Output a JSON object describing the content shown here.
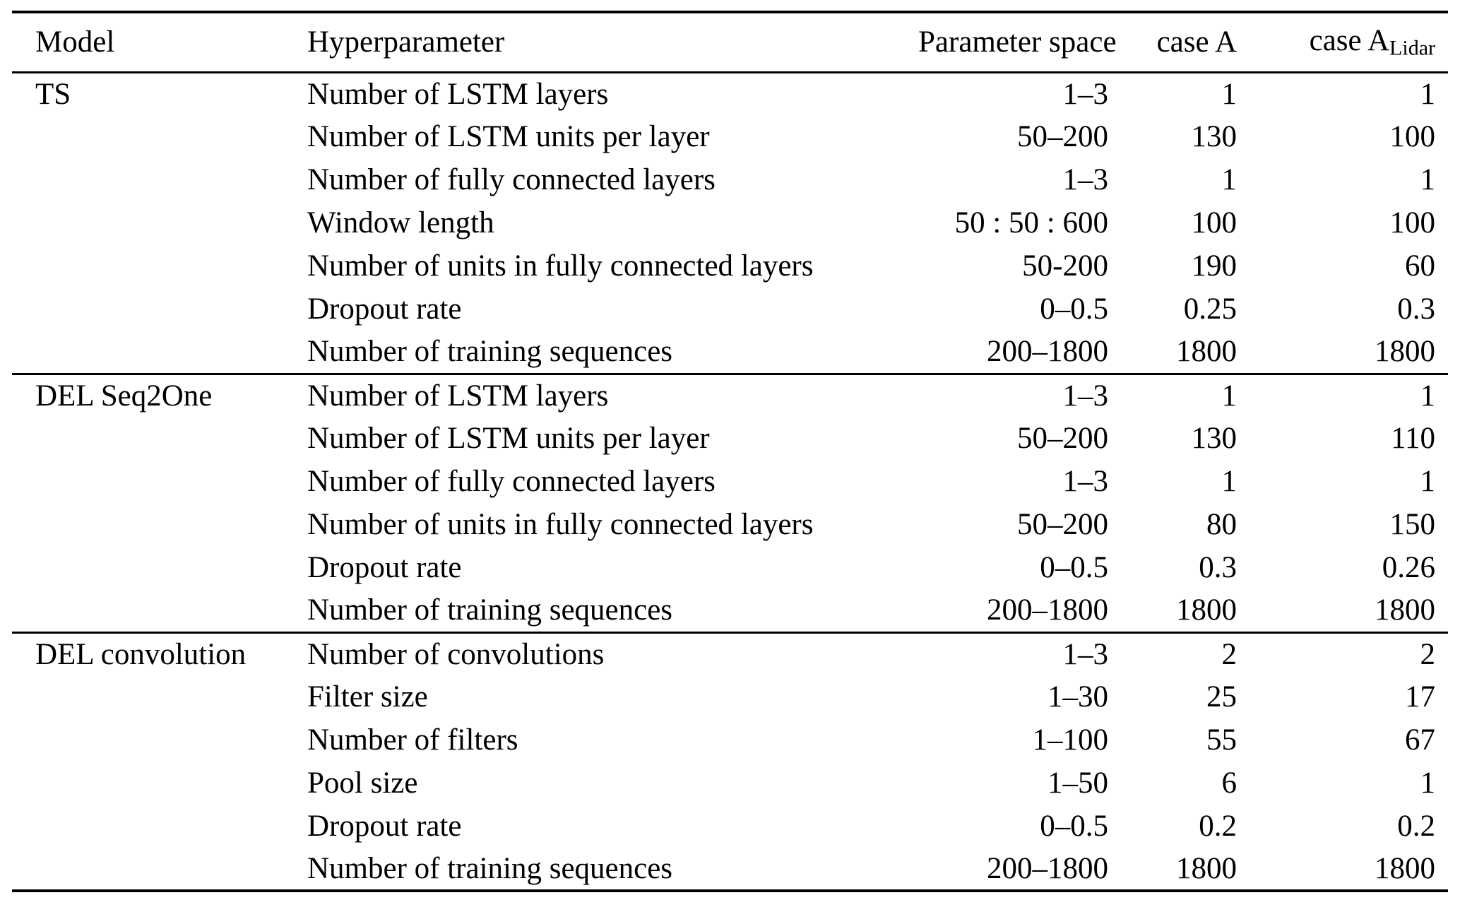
{
  "table": {
    "header": {
      "model": "Model",
      "hyperparameter": "Hyperparameter",
      "parameter_space": "Parameter space",
      "case_a": "case A",
      "case_a_lidar_base": "case A",
      "case_a_lidar_sub": "Lidar"
    },
    "sections": [
      {
        "model": "TS",
        "rows": [
          {
            "hyperparameter": "Number of LSTM layers",
            "parameter_space": "1–3",
            "case_a": "1",
            "case_a_lidar": "1"
          },
          {
            "hyperparameter": "Number of LSTM units per layer",
            "parameter_space": "50–200",
            "case_a": "130",
            "case_a_lidar": "100"
          },
          {
            "hyperparameter": "Number of fully connected layers",
            "parameter_space": "1–3",
            "case_a": "1",
            "case_a_lidar": "1"
          },
          {
            "hyperparameter": "Window length",
            "parameter_space": "50 : 50 : 600",
            "case_a": "100",
            "case_a_lidar": "100"
          },
          {
            "hyperparameter": "Number of units in fully connected layers",
            "parameter_space": "50-200",
            "case_a": "190",
            "case_a_lidar": "60"
          },
          {
            "hyperparameter": "Dropout rate",
            "parameter_space": "0–0.5",
            "case_a": "0.25",
            "case_a_lidar": "0.3"
          },
          {
            "hyperparameter": "Number of training sequences",
            "parameter_space": "200–1800",
            "case_a": "1800",
            "case_a_lidar": "1800"
          }
        ]
      },
      {
        "model": "DEL Seq2One",
        "rows": [
          {
            "hyperparameter": "Number of LSTM layers",
            "parameter_space": "1–3",
            "case_a": "1",
            "case_a_lidar": "1"
          },
          {
            "hyperparameter": "Number of LSTM units per layer",
            "parameter_space": "50–200",
            "case_a": "130",
            "case_a_lidar": "110"
          },
          {
            "hyperparameter": "Number of fully connected layers",
            "parameter_space": "1–3",
            "case_a": "1",
            "case_a_lidar": "1"
          },
          {
            "hyperparameter": "Number of units in fully connected layers",
            "parameter_space": "50–200",
            "case_a": "80",
            "case_a_lidar": "150"
          },
          {
            "hyperparameter": "Dropout rate",
            "parameter_space": "0–0.5",
            "case_a": "0.3",
            "case_a_lidar": "0.26"
          },
          {
            "hyperparameter": "Number of training sequences",
            "parameter_space": "200–1800",
            "case_a": "1800",
            "case_a_lidar": "1800"
          }
        ]
      },
      {
        "model": "DEL convolution",
        "rows": [
          {
            "hyperparameter": "Number of convolutions",
            "parameter_space": "1–3",
            "case_a": "2",
            "case_a_lidar": "2"
          },
          {
            "hyperparameter": "Filter size",
            "parameter_space": "1–30",
            "case_a": "25",
            "case_a_lidar": "17"
          },
          {
            "hyperparameter": "Number of filters",
            "parameter_space": "1–100",
            "case_a": "55",
            "case_a_lidar": "67"
          },
          {
            "hyperparameter": "Pool size",
            "parameter_space": "1–50",
            "case_a": "6",
            "case_a_lidar": "1"
          },
          {
            "hyperparameter": "Dropout rate",
            "parameter_space": "0–0.5",
            "case_a": "0.2",
            "case_a_lidar": "0.2"
          },
          {
            "hyperparameter": "Number of training sequences",
            "parameter_space": "200–1800",
            "case_a": "1800",
            "case_a_lidar": "1800"
          }
        ]
      }
    ]
  }
}
